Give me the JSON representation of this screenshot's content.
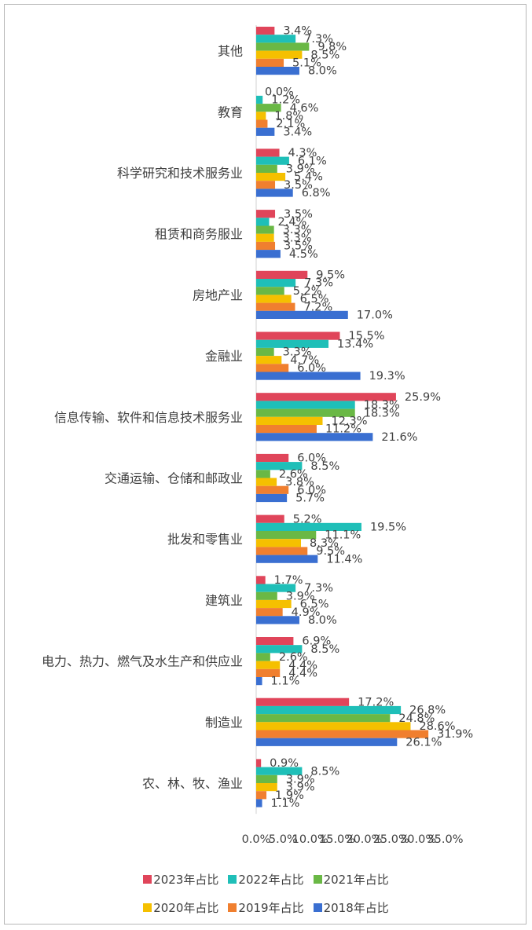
{
  "chart_data": {
    "type": "bar",
    "orientation": "horizontal",
    "categories": [
      "其他",
      "教育",
      "科学研究和技术服务业",
      "租赁和商务服业",
      "房地产业",
      "金融业",
      "信息传输、软件和信息技术服务业",
      "交通运输、仓储和邮政业",
      "批发和零售业",
      "建筑业",
      "电力、热力、燃气及水生产和供应业",
      "制造业",
      "农、林、牧、渔业"
    ],
    "series": [
      {
        "name": "2023年占比",
        "color": "#e0455a",
        "values": [
          3.4,
          0.0,
          4.3,
          3.5,
          9.5,
          15.5,
          25.9,
          6.0,
          5.2,
          1.7,
          6.9,
          17.2,
          0.9
        ]
      },
      {
        "name": "2022年占比",
        "color": "#1fbfb8",
        "values": [
          7.3,
          1.2,
          6.1,
          2.4,
          7.3,
          13.4,
          18.3,
          8.5,
          19.5,
          7.3,
          8.5,
          26.8,
          8.5
        ]
      },
      {
        "name": "2021年占比",
        "color": "#6ab845",
        "values": [
          9.8,
          4.6,
          3.9,
          3.3,
          5.2,
          3.3,
          18.3,
          2.6,
          11.1,
          3.9,
          2.6,
          24.8,
          3.9
        ]
      },
      {
        "name": "2020年占比",
        "color": "#f5c000",
        "values": [
          8.5,
          1.8,
          5.4,
          3.3,
          6.5,
          4.7,
          12.3,
          3.8,
          8.3,
          6.5,
          4.4,
          28.6,
          3.9
        ]
      },
      {
        "name": "2019年占比",
        "color": "#f07f2f",
        "values": [
          5.1,
          2.1,
          3.5,
          3.5,
          7.2,
          6.0,
          11.2,
          6.0,
          9.5,
          4.9,
          4.4,
          31.9,
          1.9
        ]
      },
      {
        "name": "2018年占比",
        "color": "#3a6fd1",
        "values": [
          8.0,
          3.4,
          6.8,
          4.5,
          17.0,
          19.3,
          21.6,
          5.7,
          11.4,
          8.0,
          1.1,
          26.1,
          1.1
        ]
      }
    ],
    "value_suffix": "%",
    "xlim": [
      0,
      35
    ],
    "xticks": [
      "0.0%",
      "5.0%",
      "10.0%",
      "15.0%",
      "20.0%",
      "25.0%",
      "30.0%",
      "35.0%"
    ],
    "grid": false,
    "legend": {
      "placement": "bottom"
    }
  }
}
